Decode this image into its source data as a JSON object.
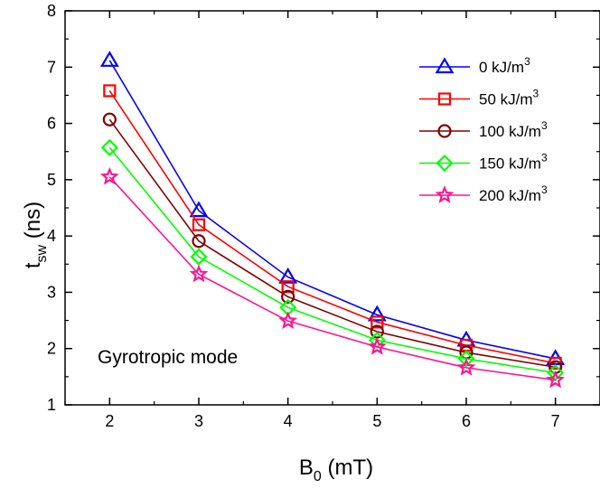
{
  "chart_data": {
    "type": "line",
    "xlabel": {
      "main": "B",
      "sub": "0",
      "tail": " (mT)"
    },
    "ylabel": {
      "main": "t",
      "sub": "sw",
      "tail": " (ns)"
    },
    "xlim": [
      1.5,
      7.5
    ],
    "ylim": [
      1,
      8
    ],
    "xticks": [
      2,
      3,
      4,
      5,
      6,
      7
    ],
    "yticks": [
      1,
      2,
      3,
      4,
      5,
      6,
      7,
      8
    ],
    "x": [
      2,
      3,
      4,
      5,
      6,
      7
    ],
    "annotation": "Gyrotropic mode",
    "legend_position": "top-right",
    "series": [
      {
        "name": "0 kJ/m",
        "sup": "3",
        "color": "#0000ff",
        "marker": "triangle",
        "values": [
          7.12,
          4.45,
          3.27,
          2.6,
          2.15,
          1.82
        ]
      },
      {
        "name": "50  kJ/m",
        "sup": "3",
        "color": "#ff0000",
        "marker": "square",
        "values": [
          6.58,
          4.2,
          3.1,
          2.47,
          2.06,
          1.74
        ]
      },
      {
        "name": "100  kJ/m",
        "sup": "3",
        "color": "#800000",
        "marker": "circle",
        "values": [
          6.07,
          3.91,
          2.92,
          2.3,
          1.93,
          1.67
        ]
      },
      {
        "name": "150  kJ/m",
        "sup": "3",
        "color": "#00ff00",
        "marker": "diamond",
        "values": [
          5.57,
          3.63,
          2.73,
          2.15,
          1.82,
          1.57
        ]
      },
      {
        "name": "200  kJ/m",
        "sup": "3",
        "color": "#ff1493",
        "marker": "star",
        "values": [
          5.05,
          3.32,
          2.49,
          2.03,
          1.66,
          1.44
        ]
      }
    ]
  }
}
